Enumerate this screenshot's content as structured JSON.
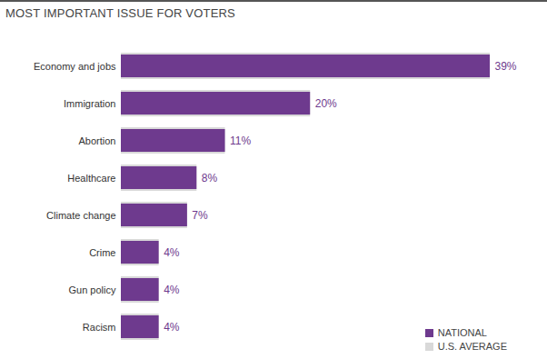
{
  "chart_data": {
    "type": "bar",
    "title": "MOST IMPORTANT ISSUE FOR VOTERS",
    "orientation": "horizontal",
    "categories": [
      "Economy and jobs",
      "Immigration",
      "Abortion",
      "Healthcare",
      "Climate change",
      "Crime",
      "Gun policy",
      "Racism"
    ],
    "series": [
      {
        "name": "NATIONAL",
        "color": "#6e3a8e",
        "values": [
          39,
          20,
          11,
          8,
          7,
          4,
          4,
          4
        ],
        "value_labels": [
          "39%",
          "20%",
          "11%",
          "8%",
          "7%",
          "4%",
          "4%",
          "4%"
        ]
      },
      {
        "name": "U.S. AVERAGE",
        "color": "#d9d9d9",
        "values": [
          39,
          20,
          11,
          8,
          7,
          4,
          4,
          4
        ]
      }
    ],
    "xlim": [
      0,
      39
    ],
    "xticks": [],
    "data_labels": true,
    "tick_labels": "y",
    "legend": "bottom-right",
    "grid": false
  }
}
